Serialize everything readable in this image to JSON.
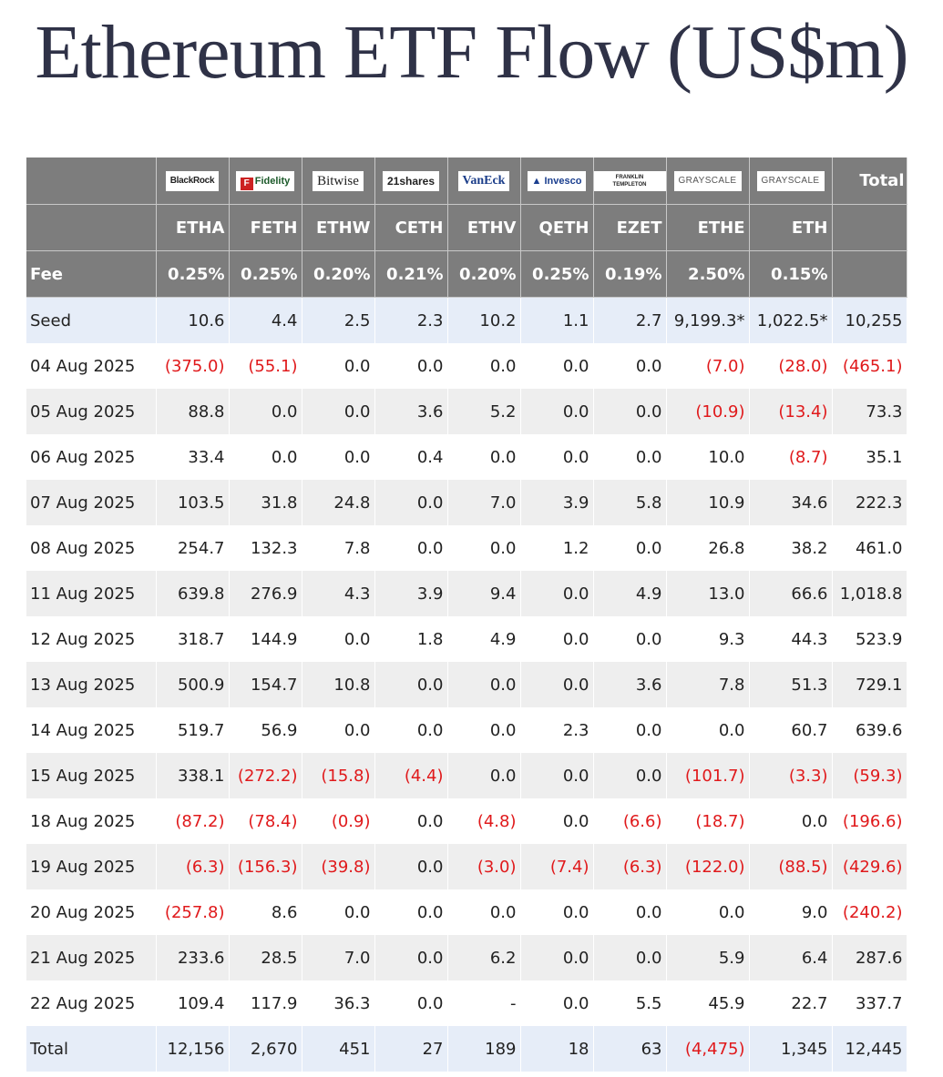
{
  "title": "Ethereum ETF Flow (US$m)",
  "colors": {
    "header_bg": "#7d7d7d",
    "negative": "#e0191b",
    "seed_bg": "#e6edf8",
    "alt_row_bg": "#eeeeee"
  },
  "header": {
    "issuers": [
      "BlackRock",
      "Fidelity",
      "Bitwise",
      "21shares",
      "VanEck",
      "Invesco",
      "FRANKLIN TEMPLETON",
      "GRAYSCALE",
      "GRAYSCALE"
    ],
    "total_label": "Total",
    "tickers": [
      "ETHA",
      "FETH",
      "ETHW",
      "CETH",
      "ETHV",
      "QETH",
      "EZET",
      "ETHE",
      "ETH"
    ],
    "fee_label": "Fee",
    "fees": [
      "0.25%",
      "0.25%",
      "0.20%",
      "0.21%",
      "0.20%",
      "0.25%",
      "0.19%",
      "2.50%",
      "0.15%"
    ]
  },
  "rows": [
    {
      "date": "Seed",
      "values": [
        "10.6",
        "4.4",
        "2.5",
        "2.3",
        "10.2",
        "1.1",
        "2.7",
        "9,199.3*",
        "1,022.5*",
        "10,255"
      ]
    },
    {
      "date": "04 Aug 2025",
      "values": [
        "(375.0)",
        "(55.1)",
        "0.0",
        "0.0",
        "0.0",
        "0.0",
        "0.0",
        "(7.0)",
        "(28.0)",
        "(465.1)"
      ]
    },
    {
      "date": "05 Aug 2025",
      "values": [
        "88.8",
        "0.0",
        "0.0",
        "3.6",
        "5.2",
        "0.0",
        "0.0",
        "(10.9)",
        "(13.4)",
        "73.3"
      ]
    },
    {
      "date": "06 Aug 2025",
      "values": [
        "33.4",
        "0.0",
        "0.0",
        "0.4",
        "0.0",
        "0.0",
        "0.0",
        "10.0",
        "(8.7)",
        "35.1"
      ]
    },
    {
      "date": "07 Aug 2025",
      "values": [
        "103.5",
        "31.8",
        "24.8",
        "0.0",
        "7.0",
        "3.9",
        "5.8",
        "10.9",
        "34.6",
        "222.3"
      ]
    },
    {
      "date": "08 Aug 2025",
      "values": [
        "254.7",
        "132.3",
        "7.8",
        "0.0",
        "0.0",
        "1.2",
        "0.0",
        "26.8",
        "38.2",
        "461.0"
      ]
    },
    {
      "date": "11 Aug 2025",
      "values": [
        "639.8",
        "276.9",
        "4.3",
        "3.9",
        "9.4",
        "0.0",
        "4.9",
        "13.0",
        "66.6",
        "1,018.8"
      ]
    },
    {
      "date": "12 Aug 2025",
      "values": [
        "318.7",
        "144.9",
        "0.0",
        "1.8",
        "4.9",
        "0.0",
        "0.0",
        "9.3",
        "44.3",
        "523.9"
      ]
    },
    {
      "date": "13 Aug 2025",
      "values": [
        "500.9",
        "154.7",
        "10.8",
        "0.0",
        "0.0",
        "0.0",
        "3.6",
        "7.8",
        "51.3",
        "729.1"
      ]
    },
    {
      "date": "14 Aug 2025",
      "values": [
        "519.7",
        "56.9",
        "0.0",
        "0.0",
        "0.0",
        "2.3",
        "0.0",
        "0.0",
        "60.7",
        "639.6"
      ]
    },
    {
      "date": "15 Aug 2025",
      "values": [
        "338.1",
        "(272.2)",
        "(15.8)",
        "(4.4)",
        "0.0",
        "0.0",
        "0.0",
        "(101.7)",
        "(3.3)",
        "(59.3)"
      ]
    },
    {
      "date": "18 Aug 2025",
      "values": [
        "(87.2)",
        "(78.4)",
        "(0.9)",
        "0.0",
        "(4.8)",
        "0.0",
        "(6.6)",
        "(18.7)",
        "0.0",
        "(196.6)"
      ]
    },
    {
      "date": "19 Aug 2025",
      "values": [
        "(6.3)",
        "(156.3)",
        "(39.8)",
        "0.0",
        "(3.0)",
        "(7.4)",
        "(6.3)",
        "(122.0)",
        "(88.5)",
        "(429.6)"
      ]
    },
    {
      "date": "20 Aug 2025",
      "values": [
        "(257.8)",
        "8.6",
        "0.0",
        "0.0",
        "0.0",
        "0.0",
        "0.0",
        "0.0",
        "9.0",
        "(240.2)"
      ]
    },
    {
      "date": "21 Aug 2025",
      "values": [
        "233.6",
        "28.5",
        "7.0",
        "0.0",
        "6.2",
        "0.0",
        "0.0",
        "5.9",
        "6.4",
        "287.6"
      ]
    },
    {
      "date": "22 Aug 2025",
      "values": [
        "109.4",
        "117.9",
        "36.3",
        "0.0",
        "-",
        "0.0",
        "5.5",
        "45.9",
        "22.7",
        "337.7"
      ]
    },
    {
      "date": "Total",
      "values": [
        "12,156",
        "2,670",
        "451",
        "27",
        "189",
        "18",
        "63",
        "(4,475)",
        "1,345",
        "12,445"
      ]
    }
  ]
}
